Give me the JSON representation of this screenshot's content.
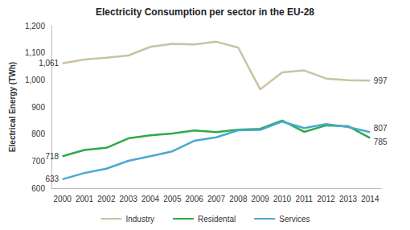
{
  "chart_data": {
    "type": "line",
    "title": "Electricity Consumption per sector in the EU-28",
    "y_label": "Electrical Energy (TWh)",
    "categories": [
      "2000",
      "2001",
      "2002",
      "2003",
      "2004",
      "2005",
      "2006",
      "2007",
      "2008",
      "2009",
      "2010",
      "2011",
      "2012",
      "2013",
      "2014"
    ],
    "series": [
      {
        "name": "Industry",
        "color": "#c9c3a1",
        "values": [
          1061,
          1075,
          1082,
          1090,
          1122,
          1133,
          1131,
          1141,
          1119,
          965,
          1028,
          1035,
          1005,
          999,
          997
        ]
      },
      {
        "name": "Residental",
        "color": "#2eaa4a",
        "values": [
          718,
          741,
          749,
          784,
          795,
          802,
          813,
          807,
          816,
          819,
          850,
          808,
          832,
          829,
          785
        ]
      },
      {
        "name": "Services",
        "color": "#4aa8d0",
        "values": [
          633,
          656,
          672,
          701,
          718,
          736,
          775,
          788,
          814,
          815,
          846,
          822,
          837,
          826,
          807
        ]
      }
    ],
    "ylim": [
      600,
      1200
    ],
    "yticks": [
      600,
      700,
      800,
      900,
      {
        "value": 1000,
        "label": "1,000"
      },
      {
        "value": 1100,
        "label": "1,100"
      },
      {
        "value": 1200,
        "label": "1,200"
      }
    ],
    "grid": false,
    "legend": "bottom",
    "annotations": [
      {
        "text": "1,061",
        "x": "2000",
        "y": 1061
      },
      {
        "text": "718",
        "x": "2000",
        "y": 718
      },
      {
        "text": "633",
        "x": "2000",
        "y": 633
      },
      {
        "text": "997",
        "x": "2014",
        "y": 997
      },
      {
        "text": "807",
        "x": "2014",
        "y": 807
      },
      {
        "text": "785",
        "x": "2014",
        "y": 785
      }
    ]
  }
}
